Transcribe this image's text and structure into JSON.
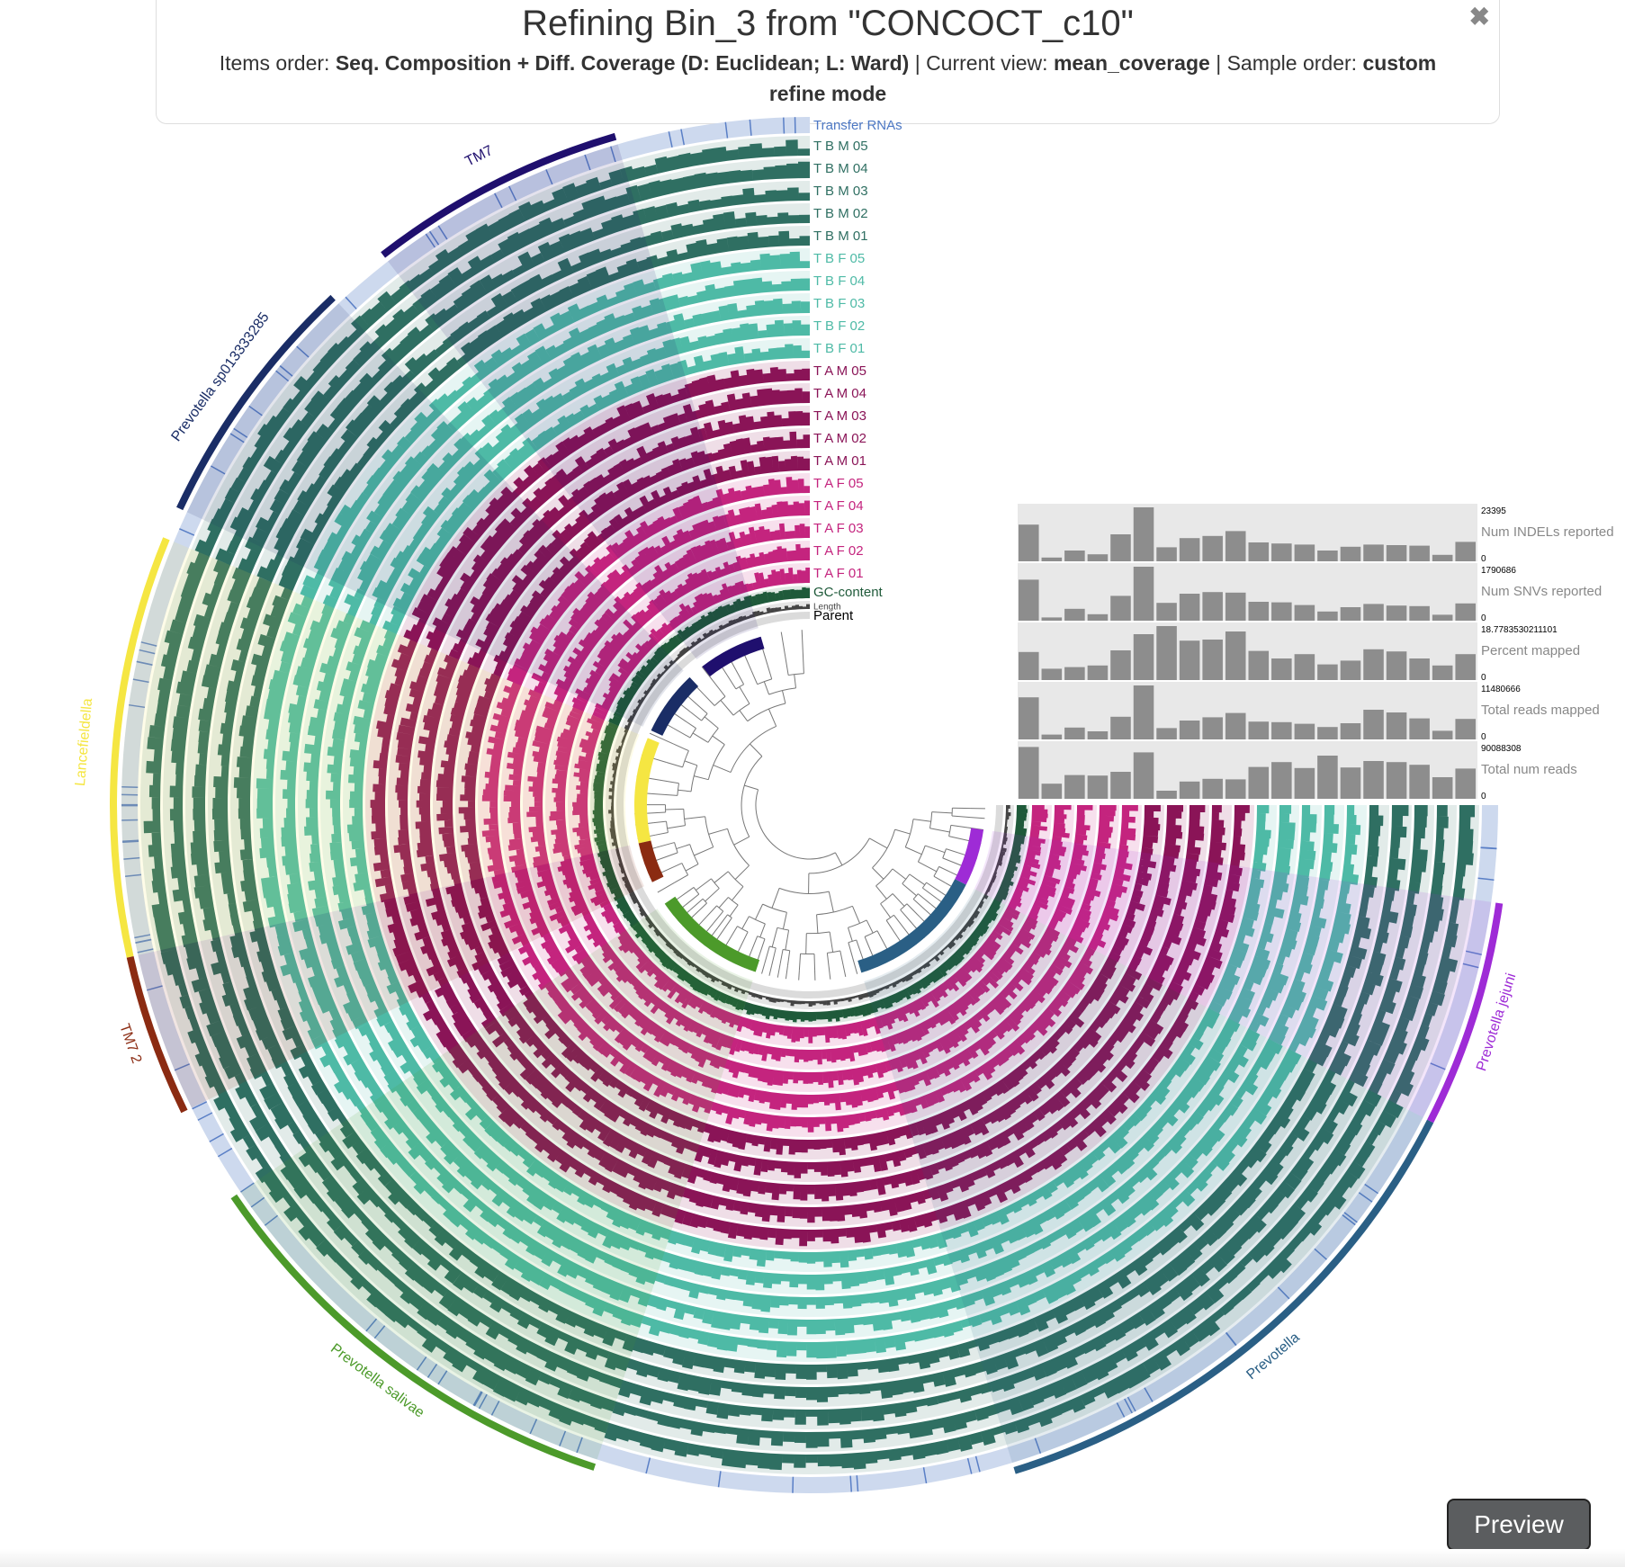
{
  "header": {
    "title": "Refining Bin_3 from \"CONCOCT_c10\"",
    "items_order_label": "Items order:",
    "items_order_value": "Seq. Composition + Diff. Coverage (D: Euclidean; L: Ward)",
    "current_view_label": "Current view:",
    "current_view_value": "mean_coverage",
    "sample_order_label": "Sample order:",
    "sample_order_value": "custom",
    "mode": "refine mode",
    "close_icon": "close-icon"
  },
  "layers": [
    {
      "label": "Transfer RNAs",
      "color": "#4d78c4"
    },
    {
      "label": "T B M 05",
      "color": "#2f6f62"
    },
    {
      "label": "T B M 04",
      "color": "#2f6f62"
    },
    {
      "label": "T B M 03",
      "color": "#2f6f62"
    },
    {
      "label": "T B M 02",
      "color": "#2f6f62"
    },
    {
      "label": "T B M 01",
      "color": "#2f6f62"
    },
    {
      "label": "T B F 05",
      "color": "#4ebaa6"
    },
    {
      "label": "T B F 04",
      "color": "#4ebaa6"
    },
    {
      "label": "T B F 03",
      "color": "#4ebaa6"
    },
    {
      "label": "T B F 02",
      "color": "#4ebaa6"
    },
    {
      "label": "T B F 01",
      "color": "#4ebaa6"
    },
    {
      "label": "T A M 05",
      "color": "#8a1457"
    },
    {
      "label": "T A M 04",
      "color": "#8a1457"
    },
    {
      "label": "T A M 03",
      "color": "#8a1457"
    },
    {
      "label": "T A M 02",
      "color": "#8a1457"
    },
    {
      "label": "T A M 01",
      "color": "#8a1457"
    },
    {
      "label": "T A F 05",
      "color": "#c4247e"
    },
    {
      "label": "T A F 04",
      "color": "#c4247e"
    },
    {
      "label": "T A F 03",
      "color": "#c4247e"
    },
    {
      "label": "T A F 02",
      "color": "#c4247e"
    },
    {
      "label": "T A F 01",
      "color": "#c4247e"
    },
    {
      "label": "GC-content",
      "color": "#1f5a3a"
    },
    {
      "label": "Length",
      "color": "#444444"
    },
    {
      "label": "Parent",
      "color": "#000000"
    }
  ],
  "bins": [
    {
      "name": "TM7",
      "color": "#1f0f6e"
    },
    {
      "name": "Prevotella sp013333285",
      "color": "#1a2d66"
    },
    {
      "name": "Lancefieldella",
      "color": "#f5e642"
    },
    {
      "name": "TM7 2",
      "color": "#8b2b12"
    },
    {
      "name": "Prevotella salivae",
      "color": "#4c9a2a"
    },
    {
      "name": "Prevotella",
      "color": "#2a5f85"
    },
    {
      "name": "Prevotella jejuni",
      "color": "#9e2bd6"
    }
  ],
  "sample_bars": [
    {
      "label": "Num INDELs reported",
      "max": "23395",
      "min": "0",
      "values": [
        0.68,
        0.07,
        0.2,
        0.13,
        0.5,
        1.0,
        0.26,
        0.43,
        0.47,
        0.56,
        0.35,
        0.33,
        0.31,
        0.2,
        0.27,
        0.31,
        0.3,
        0.29,
        0.12,
        0.36
      ]
    },
    {
      "label": "Num SNVs reported",
      "max": "1790686",
      "min": "0",
      "values": [
        0.76,
        0.06,
        0.22,
        0.12,
        0.46,
        1.0,
        0.33,
        0.5,
        0.53,
        0.52,
        0.35,
        0.34,
        0.29,
        0.17,
        0.25,
        0.31,
        0.28,
        0.27,
        0.11,
        0.32
      ]
    },
    {
      "label": "Percent mapped",
      "max": "18.7783530211101",
      "min": "0",
      "values": [
        0.52,
        0.21,
        0.24,
        0.27,
        0.55,
        0.85,
        1.0,
        0.73,
        0.75,
        0.9,
        0.54,
        0.4,
        0.48,
        0.29,
        0.36,
        0.57,
        0.53,
        0.4,
        0.27,
        0.48
      ]
    },
    {
      "label": "Total reads mapped",
      "max": "11480666",
      "min": "0",
      "values": [
        0.78,
        0.09,
        0.22,
        0.15,
        0.42,
        1.0,
        0.21,
        0.35,
        0.41,
        0.49,
        0.33,
        0.32,
        0.29,
        0.23,
        0.3,
        0.55,
        0.5,
        0.39,
        0.16,
        0.38
      ]
    },
    {
      "label": "Total num reads",
      "max": "90088308",
      "min": "0",
      "values": [
        0.96,
        0.28,
        0.44,
        0.43,
        0.5,
        0.86,
        0.15,
        0.32,
        0.37,
        0.36,
        0.59,
        0.68,
        0.57,
        0.8,
        0.58,
        0.7,
        0.68,
        0.63,
        0.4,
        0.56
      ]
    }
  ],
  "preview_button": "Preview"
}
